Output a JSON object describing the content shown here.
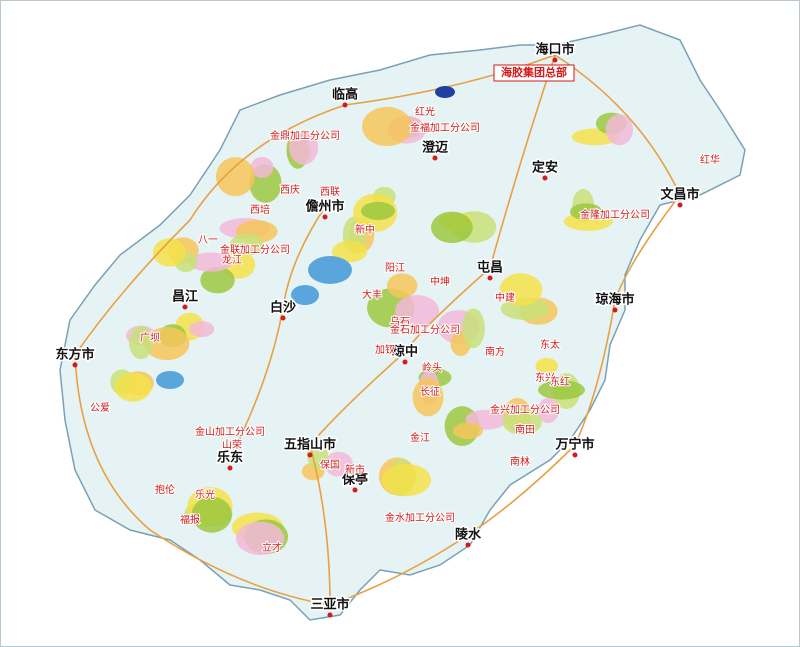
{
  "map": {
    "cities": [
      "海口市",
      "临高",
      "澄迈",
      "定安",
      "文昌市",
      "儋州市",
      "屯昌",
      "琼海市",
      "白沙",
      "昌江",
      "琼中",
      "东方市",
      "五指山市",
      "万宁市",
      "乐东",
      "保亭",
      "陵水",
      "三亚市"
    ],
    "headquarters": "海胶集团总部",
    "farms": [
      "红光",
      "金福加工分公司",
      "金鼎加工分公司",
      "西联",
      "西培",
      "西庆",
      "八一",
      "龙江",
      "新中",
      "阳江",
      "大丰",
      "中坤",
      "中建",
      "乌石",
      "南方",
      "加钗",
      "岭头",
      "长征",
      "东太",
      "东兴",
      "东红",
      "南田",
      "立才",
      "广坝",
      "公爱",
      "山荣",
      "金江",
      "红华",
      "南林",
      "保国",
      "新市",
      "福报",
      "抱伦",
      "乐光",
      "金山加工分公司",
      "金水加工分公司",
      "金联加工分公司",
      "金石加工分公司",
      "金兴加工分公司",
      "金隆加工分公司"
    ]
  }
}
